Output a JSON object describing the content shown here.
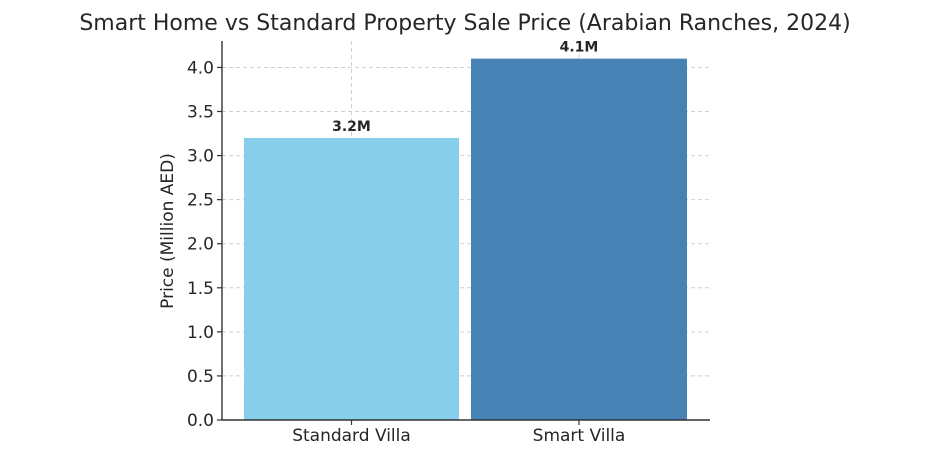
{
  "chart_data": {
    "type": "bar",
    "title": "Smart Home vs Standard Property Sale Price (Arabian Ranches, 2024)",
    "xlabel": "",
    "ylabel": "Price (Million AED)",
    "categories": [
      "Standard Villa",
      "Smart Villa"
    ],
    "values": [
      3.2,
      4.1
    ],
    "data_labels": [
      "3.2M",
      "4.1M"
    ],
    "colors": [
      "#87CEEB",
      "#4682B4"
    ],
    "ylim": [
      0,
      4.3
    ],
    "yticks": [
      0.0,
      0.5,
      1.0,
      1.5,
      2.0,
      2.5,
      3.0,
      3.5,
      4.0
    ],
    "ytick_labels": [
      "0.0",
      "0.5",
      "1.0",
      "1.5",
      "2.0",
      "2.5",
      "3.0",
      "3.5",
      "4.0"
    ],
    "grid": true,
    "legend": false
  }
}
